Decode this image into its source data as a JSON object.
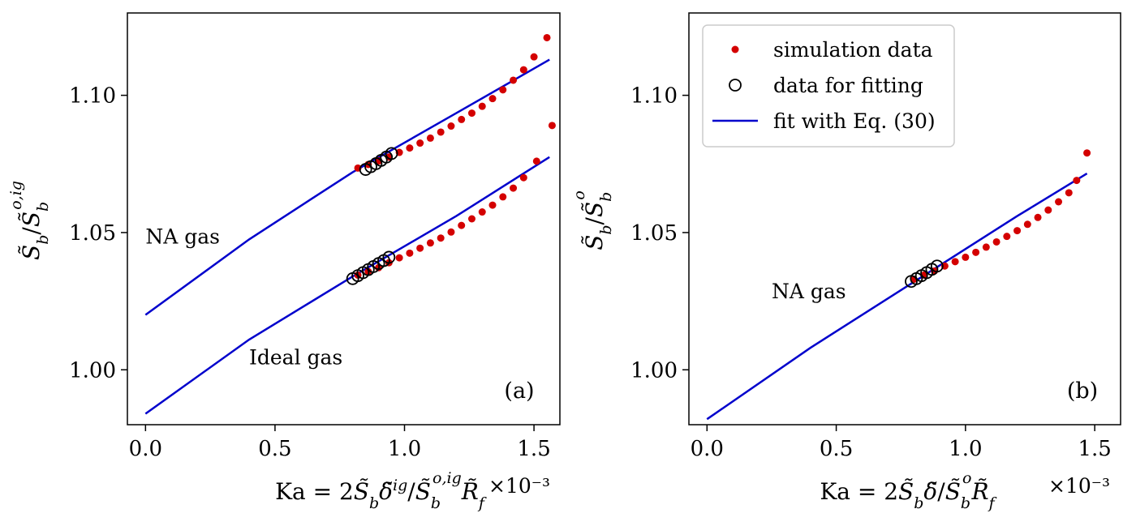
{
  "chart_data": [
    {
      "type": "scatter",
      "panel_label": "(a)",
      "xlabel": "Ka = 2S̃_b δ̃^ig / S̃_b^(o,ig) R̃_f",
      "ylabel": "S̃_b / S̃_b^(o,ig)",
      "x_multiplier": "×10⁻³",
      "xlim": [
        -0.07,
        1.6
      ],
      "ylim": [
        0.98,
        1.13
      ],
      "xticks": [
        0.0,
        0.5,
        1.0,
        1.5
      ],
      "xtick_labels": [
        "0.0",
        "0.5",
        "1.0",
        "1.5"
      ],
      "yticks": [
        1.0,
        1.05,
        1.1
      ],
      "ytick_labels": [
        "1.00",
        "1.05",
        "1.10"
      ],
      "annotations": [
        {
          "text": "NA gas",
          "x": 0.0,
          "y": 1.046
        },
        {
          "text": "Ideal gas",
          "x": 0.4,
          "y": 1.002
        }
      ],
      "series": [
        {
          "role": "simulation data",
          "color": "#d40000",
          "x": [
            0.82,
            0.86,
            0.9,
            0.94,
            0.98,
            1.02,
            1.06,
            1.1,
            1.14,
            1.18,
            1.22,
            1.26,
            1.3,
            1.34,
            1.38,
            1.42,
            1.46,
            1.5,
            1.55
          ],
          "y": [
            1.0735,
            1.0748,
            1.0761,
            1.0775,
            1.0792,
            1.0808,
            1.0826,
            1.0844,
            1.0866,
            1.0888,
            1.0912,
            1.0935,
            1.096,
            1.0988,
            1.102,
            1.1055,
            1.1093,
            1.114,
            1.121
          ]
        },
        {
          "role": "data for fitting",
          "color": "#000000",
          "x": [
            0.85,
            0.87,
            0.89,
            0.91,
            0.93,
            0.95
          ],
          "y": [
            1.073,
            1.074,
            1.0751,
            1.0763,
            1.0775,
            1.0788
          ]
        },
        {
          "role": "fit",
          "color": "#0000cc",
          "x": [
            0.0,
            0.4,
            0.8,
            1.2,
            1.56
          ],
          "y": [
            1.02,
            1.0475,
            1.072,
            1.0935,
            1.113
          ]
        },
        {
          "role": "simulation data",
          "color": "#d40000",
          "x": [
            0.82,
            0.86,
            0.9,
            0.94,
            0.98,
            1.02,
            1.06,
            1.1,
            1.14,
            1.18,
            1.22,
            1.26,
            1.3,
            1.34,
            1.38,
            1.42,
            1.46,
            1.51,
            1.57
          ],
          "y": [
            1.0345,
            1.0358,
            1.0372,
            1.039,
            1.0408,
            1.0425,
            1.0443,
            1.0462,
            1.048,
            1.0502,
            1.0526,
            1.055,
            1.0575,
            1.06,
            1.063,
            1.0662,
            1.07,
            1.076,
            1.089
          ]
        },
        {
          "role": "data for fitting",
          "color": "#000000",
          "x": [
            0.8,
            0.82,
            0.84,
            0.86,
            0.88,
            0.9,
            0.92,
            0.94
          ],
          "y": [
            1.0332,
            1.0343,
            1.0354,
            1.0365,
            1.0376,
            1.0387,
            1.0398,
            1.041
          ]
        },
        {
          "role": "fit",
          "color": "#0000cc",
          "x": [
            0.0,
            0.4,
            0.8,
            1.2,
            1.56
          ],
          "y": [
            0.984,
            1.011,
            1.034,
            1.056,
            1.0775
          ]
        }
      ]
    },
    {
      "type": "scatter",
      "panel_label": "(b)",
      "xlabel": "Ka = 2S̃_b δ̃ / S̃_b^o R̃_f",
      "ylabel": "S̃_b / S̃_b^o",
      "x_multiplier": "×10⁻³",
      "xlim": [
        -0.07,
        1.6
      ],
      "ylim": [
        0.98,
        1.13
      ],
      "xticks": [
        0.0,
        0.5,
        1.0,
        1.5
      ],
      "xtick_labels": [
        "0.0",
        "0.5",
        "1.0",
        "1.5"
      ],
      "yticks": [
        1.0,
        1.05,
        1.1
      ],
      "ytick_labels": [
        "1.00",
        "1.05",
        "1.10"
      ],
      "annotations": [
        {
          "text": "NA gas",
          "x": 0.25,
          "y": 1.026
        }
      ],
      "legend": {
        "placement": "upper-left",
        "entries": [
          {
            "label": "simulation data",
            "marker": "filled-dot",
            "color": "#d40000"
          },
          {
            "label": "data for fitting",
            "marker": "open-circle",
            "color": "#000000"
          },
          {
            "label": "fit with Eq. (30)",
            "marker": "line",
            "color": "#0000cc"
          }
        ]
      },
      "series": [
        {
          "role": "simulation data",
          "color": "#d40000",
          "x": [
            0.8,
            0.84,
            0.88,
            0.92,
            0.96,
            1.0,
            1.04,
            1.08,
            1.12,
            1.16,
            1.2,
            1.24,
            1.28,
            1.32,
            1.36,
            1.4,
            1.43,
            1.47
          ],
          "y": [
            1.033,
            1.0345,
            1.036,
            1.0378,
            1.0394,
            1.041,
            1.0428,
            1.0447,
            1.0466,
            1.0486,
            1.0507,
            1.053,
            1.0555,
            1.0582,
            1.0612,
            1.0645,
            1.069,
            1.079
          ]
        },
        {
          "role": "data for fitting",
          "color": "#000000",
          "x": [
            0.79,
            0.81,
            0.83,
            0.85,
            0.87,
            0.89
          ],
          "y": [
            1.0322,
            1.0332,
            1.0343,
            1.0354,
            1.0366,
            1.0378
          ]
        },
        {
          "role": "fit",
          "color": "#0000cc",
          "x": [
            0.0,
            0.4,
            0.8,
            1.2,
            1.47
          ],
          "y": [
            0.982,
            1.008,
            1.032,
            1.056,
            1.0715
          ]
        }
      ]
    }
  ]
}
